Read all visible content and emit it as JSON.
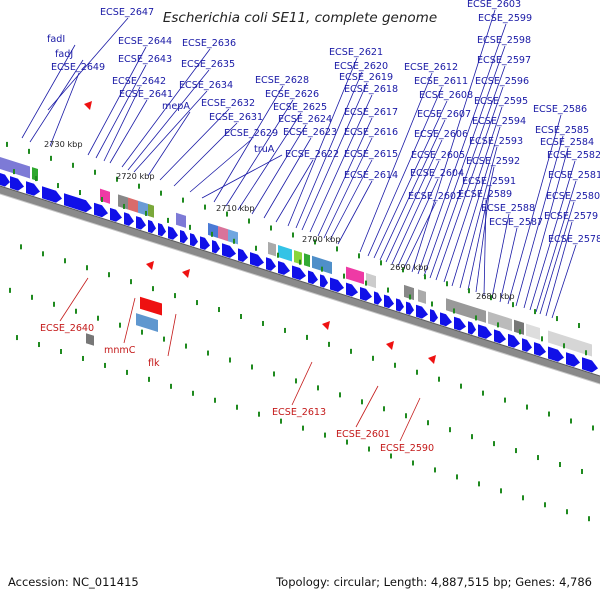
{
  "title": "Escherichia coli SE11, complete genome",
  "footer": {
    "accession": "Accession: NC_011415",
    "stats": "Topology: circular; Length: 4,887,515 bp; Genes: 4,786"
  },
  "colors": {
    "forward_gene": "#1010e8",
    "reverse_gene": "#ee1111",
    "label_blue": "#1a1aa6",
    "label_red": "#c41a1a",
    "backbone": "#8a8a8a",
    "tick": "#1f8a1f"
  },
  "scale_ticks": [
    "2730 kbp",
    "2720 kbp",
    "2710 kbp",
    "2700 kbp",
    "2690 kbp",
    "2680 kbp"
  ],
  "forward_labels": [
    "ECSE_2647",
    "fadI",
    "fadJ",
    "ECSE_2649",
    "ECSE_2644",
    "ECSE_2643",
    "ECSE_2642",
    "ECSE_2641",
    "ECSE_2636",
    "ECSE_2635",
    "ECSE_2634",
    "mepA",
    "ECSE_2632",
    "ECSE_2631",
    "ECSE_2629",
    "truA",
    "ECSE_2628",
    "ECSE_2626",
    "ECSE_2625",
    "ECSE_2624",
    "ECSE_2623",
    "ECSE_2622",
    "ECSE_2621",
    "ECSE_2620",
    "ECSE_2619",
    "ECSE_2618",
    "ECSE_2617",
    "ECSE_2616",
    "ECSE_2615",
    "ECSE_2614",
    "ECSE_2612",
    "ECSE_2611",
    "ECSE_2608",
    "ECSE_2607",
    "ECSE_2606",
    "ECSE_2605",
    "ECSE_2604",
    "ECSE_2602",
    "ECSE_2603",
    "ECSE_2599",
    "ECSE_2598",
    "ECSE_2597",
    "ECSE_2596",
    "ECSE_2595",
    "ECSE_2594",
    "ECSE_2593",
    "ECSE_2592",
    "ECSE_2591",
    "ECSE_2589",
    "ECSE_2588",
    "ECSE_2587",
    "ECSE_2586",
    "ECSE_2585",
    "ECSE_2584",
    "ECSE_2582",
    "ECSE_2581",
    "ECSE_2580",
    "ECSE_2579",
    "ECSE_2578"
  ],
  "reverse_labels": [
    "ECSE_2640",
    "mnmC",
    "flk",
    "ECSE_2613",
    "ECSE_2601",
    "ECSE_2590"
  ]
}
